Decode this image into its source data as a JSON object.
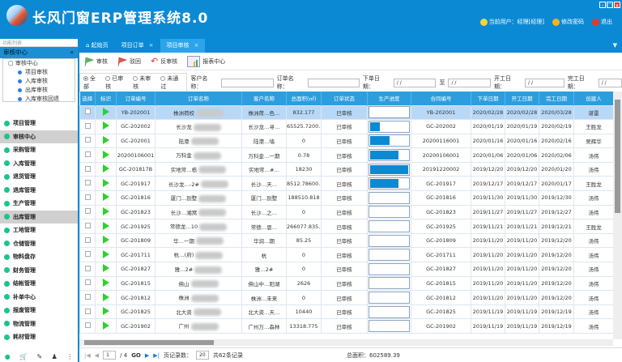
{
  "app": {
    "title": "长风门窗ERP管理系统8.0",
    "user": "当前用户：经理[经理]",
    "change_password": "修改密码",
    "logout": "退出",
    "window_buttons": [
      "-",
      "□",
      "x"
    ]
  },
  "tabs": [
    {
      "label": "起始页",
      "icon": "home-icon"
    },
    {
      "label": "项目订单",
      "close": "×"
    },
    {
      "label": "项目审核",
      "close": "×",
      "active": true
    }
  ],
  "sidebar": {
    "search_placeholder": "功能列表",
    "header": "审核中心",
    "collapse": "«",
    "tree": {
      "root": "审核中心",
      "items": [
        "项目审核",
        "入库审核",
        "出库审核",
        "入库审核回退"
      ]
    },
    "menu": [
      {
        "label": "项目管理"
      },
      {
        "label": "审核中心",
        "selected": true
      },
      {
        "label": "采购管理"
      },
      {
        "label": "入库管理"
      },
      {
        "label": "退货管理"
      },
      {
        "label": "退库管理"
      },
      {
        "label": "生产管理"
      },
      {
        "label": "出库管理",
        "selected": true
      },
      {
        "label": "工地管理"
      },
      {
        "label": "仓储管理"
      },
      {
        "label": "物料盘存"
      },
      {
        "label": "财务管理"
      },
      {
        "label": "结帐管理"
      },
      {
        "label": "补单中心"
      },
      {
        "label": "报废管理"
      },
      {
        "label": "物流管理"
      },
      {
        "label": "耗材管理"
      }
    ]
  },
  "toolbar": {
    "approve": "审核",
    "reject": "驳回",
    "unapprove": "反审核",
    "report": "报表中心"
  },
  "filters": {
    "radios": [
      "全部",
      "已审核",
      "未审核",
      "未通过"
    ],
    "selected": "全部",
    "customer_label": "客户名称：",
    "order_label": "订单名称：",
    "order_date_label": "下单日期：",
    "to_label": "至",
    "start_date_label": "开工日期：",
    "finish_date_label": "完工日期：",
    "date_placeholder": "/ /"
  },
  "table": {
    "headers": [
      "选择",
      "标识",
      "订单编号",
      "订单名称",
      "客户名称",
      "总面积(㎡)",
      "订单状态",
      "生产进度",
      "合同编号",
      "下单日期",
      "开工日期",
      "完工日期",
      "创建人"
    ],
    "rows": [
      [
        "YB-202001",
        "株洲荷校",
        "株洲荷…色…",
        "832.177",
        "已审核",
        0,
        "YB-202001",
        "2020/02/28",
        "2020/02/28",
        "2020/03/28",
        "谌雷"
      ],
      [
        "GC-202002",
        "长沙龙",
        "长沙龙…寻…",
        "65525.7200…",
        "已审核",
        0.25,
        "GC-202002",
        "2020/01/19",
        "2020/01/19",
        "2020/02/19",
        "王胜龙"
      ],
      [
        "GC-202001",
        "陆港",
        "陆港…墙",
        "0",
        "已审核",
        0.5,
        "20200116001",
        "2020/01/16",
        "2020/01/16",
        "2020/02/16",
        "吴辉华"
      ],
      [
        "20200106001",
        "万科金",
        "万科金…一期",
        "0.78",
        "已审核",
        0.75,
        "20200106001",
        "2020/01/06",
        "2020/01/06",
        "2020/02/06",
        "汤伟"
      ],
      [
        "GC-201817B",
        "实地常…栋",
        "实地常…#…",
        "18230",
        "已审核",
        1,
        "20191220002",
        "2019/12/20",
        "2019/12/20",
        "2020/01/20",
        "汤伟"
      ],
      [
        "GC-201917",
        "长沙龙…-2#",
        "长沙…天…",
        "8512.78600…",
        "已审核",
        0.75,
        "GC-201917",
        "2019/12/17",
        "2019/12/17",
        "2020/01/17",
        "王胜龙"
      ],
      [
        "GC-201816",
        "厦门…别墅",
        "厦门…别墅",
        "188510.818",
        "已审核",
        0,
        "GC-201816",
        "2019/11/30",
        "2019/11/30",
        "2019/12/30",
        "汤伟"
      ],
      [
        "GC-201823",
        "长沙…湘窝",
        "长沙…之…",
        "0",
        "已审核",
        0,
        "GC-201823",
        "2019/11/27",
        "2019/11/27",
        "2019/12/27",
        "汤伟"
      ],
      [
        "GC-201925",
        "常德龙…10",
        "常德…恩…",
        "266077.835…",
        "已审核",
        0,
        "GC-201925",
        "2019/11/21",
        "2019/11/21",
        "2019/12/21",
        "王胜龙"
      ],
      [
        "GC-201809",
        "华…一期",
        "华润…期",
        "85.25",
        "已审核",
        0,
        "GC-201809",
        "2019/11/20",
        "2019/11/20",
        "2019/12/20",
        "汤伟"
      ],
      [
        "GC-201711",
        "杭…(府)",
        "杭",
        "0",
        "已审核",
        0,
        "GC-201711",
        "2019/11/20",
        "2019/11/20",
        "2019/12/20",
        "汤伟"
      ],
      [
        "GC-201827",
        "雅…2#",
        "雅…2#",
        "0",
        "已审核",
        0,
        "GC-201827",
        "2019/11/20",
        "2019/11/20",
        "2019/12/20",
        "汤伟"
      ],
      [
        "GC-201815",
        "佛山",
        "佛山中…阳湖",
        "2626",
        "已审核",
        0,
        "GC-201815",
        "2019/11/20",
        "2019/11/20",
        "2019/12/20",
        "汤伟"
      ],
      [
        "GC-201812",
        "株洲",
        "株洲…未来",
        "0",
        "已审核",
        0,
        "GC-201812",
        "2019/11/20",
        "2019/11/20",
        "2019/12/20",
        "汤伟"
      ],
      [
        "GC-201825",
        "北大资",
        "北大资…天…",
        "10440",
        "已审核",
        0,
        "GC-201825",
        "2019/11/19",
        "2019/11/19",
        "2019/12/19",
        "汤伟"
      ],
      [
        "GC-201902",
        "广州",
        "广州万…森林",
        "13318.775",
        "已审核",
        0,
        "GC-201902",
        "2019/11/19",
        "2019/11/19",
        "2019/12/19",
        "汤伟"
      ]
    ]
  },
  "pager": {
    "page": "1",
    "total_pages": "/ 4",
    "go": "GO",
    "page_size_label": "页记录数：",
    "page_size": "20",
    "total_records": "共62条记录",
    "total_area": "总面积：602589.39"
  },
  "colors": {
    "brand": "#0b8ad3",
    "header_row": "#2c9ede",
    "selected_row": "#b8d8f6",
    "status_flag": "#2dd12d"
  }
}
